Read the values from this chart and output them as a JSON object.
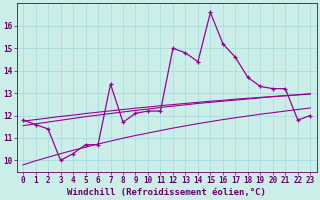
{
  "xlabel": "Windchill (Refroidissement éolien,°C)",
  "bg_color": "#cceee8",
  "grid_color": "#aadddd",
  "line_color": "#990099",
  "x": [
    0,
    1,
    2,
    3,
    4,
    5,
    6,
    7,
    8,
    9,
    10,
    11,
    12,
    13,
    14,
    15,
    16,
    17,
    18,
    19,
    20,
    21,
    22,
    23
  ],
  "y_main": [
    11.8,
    11.6,
    11.4,
    10.0,
    10.3,
    10.7,
    10.7,
    13.4,
    11.7,
    12.1,
    12.2,
    12.2,
    15.0,
    14.8,
    14.4,
    16.6,
    15.2,
    14.6,
    13.7,
    13.3,
    13.2,
    13.2,
    11.8,
    12.0
  ],
  "y_trend1": [
    11.75,
    11.82,
    11.89,
    11.96,
    12.02,
    12.09,
    12.15,
    12.21,
    12.27,
    12.33,
    12.38,
    12.44,
    12.49,
    12.54,
    12.59,
    12.64,
    12.68,
    12.73,
    12.77,
    12.81,
    12.85,
    12.89,
    12.93,
    12.97
  ],
  "y_trend2": [
    11.55,
    11.63,
    11.71,
    11.79,
    11.87,
    11.95,
    12.02,
    12.09,
    12.16,
    12.23,
    12.29,
    12.36,
    12.42,
    12.48,
    12.54,
    12.59,
    12.64,
    12.69,
    12.74,
    12.79,
    12.84,
    12.88,
    12.92,
    12.96
  ],
  "y_trend3": [
    9.8,
    9.98,
    10.14,
    10.3,
    10.45,
    10.59,
    10.73,
    10.86,
    10.99,
    11.11,
    11.22,
    11.33,
    11.44,
    11.54,
    11.64,
    11.73,
    11.82,
    11.9,
    11.98,
    12.06,
    12.13,
    12.2,
    12.27,
    12.34
  ],
  "ylim": [
    9.5,
    17.0
  ],
  "xlim": [
    -0.5,
    23.5
  ],
  "yticks": [
    10,
    11,
    12,
    13,
    14,
    15,
    16
  ],
  "xticks": [
    0,
    1,
    2,
    3,
    4,
    5,
    6,
    7,
    8,
    9,
    10,
    11,
    12,
    13,
    14,
    15,
    16,
    17,
    18,
    19,
    20,
    21,
    22,
    23
  ],
  "fontsize_tick": 5.5,
  "fontsize_label": 6.5
}
